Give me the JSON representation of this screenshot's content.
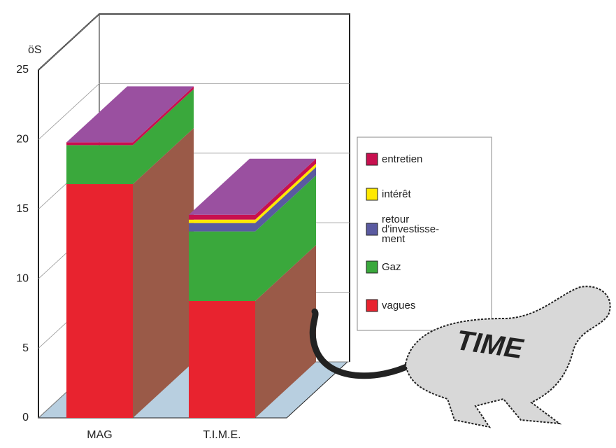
{
  "chart_data": {
    "type": "bar3d",
    "y_label": "öS",
    "categories": [
      "MAG",
      "T.I.M.E."
    ],
    "series": [
      {
        "name": "vagues",
        "color": "#e8232f",
        "values": [
          16.8,
          8.4
        ]
      },
      {
        "name": "Gaz",
        "color": "#3aa83c",
        "values": [
          2.8,
          5.0
        ]
      },
      {
        "name": "retour d'investisse-ment",
        "color": "#5a5aa0",
        "values": [
          0,
          0.6
        ]
      },
      {
        "name": "intérêt",
        "color": "#ffe800",
        "values": [
          0,
          0.25
        ]
      },
      {
        "name": "entretien",
        "color": "#c8104f",
        "values": [
          0.2,
          0.35
        ]
      }
    ],
    "ylim": [
      0,
      25
    ],
    "yticks": [
      0,
      5,
      10,
      15,
      20,
      25
    ],
    "grid": true,
    "annotation": "TIME"
  }
}
